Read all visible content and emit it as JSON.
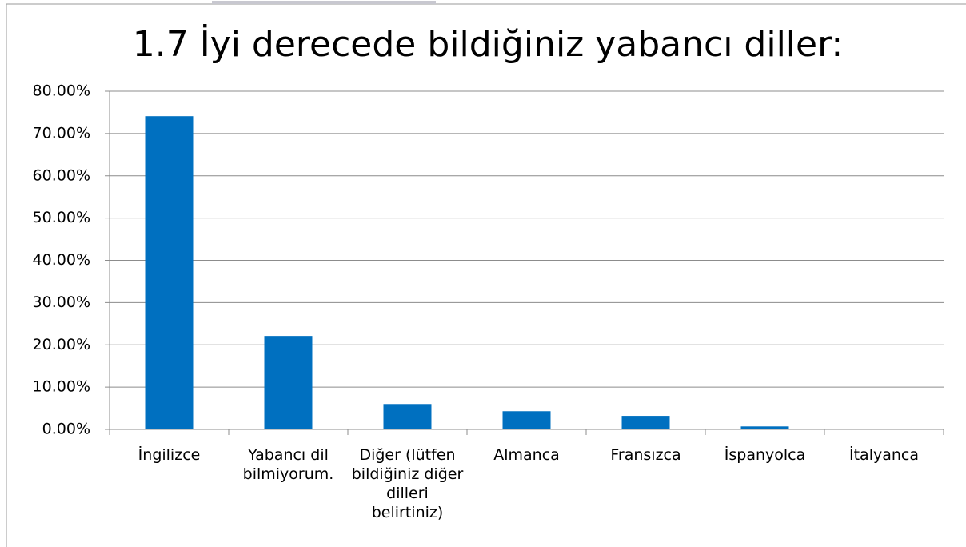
{
  "chart_data": {
    "type": "bar",
    "title": "1.7 İyi derecede bildiğiniz yabancı diller:",
    "categories": [
      "İngilizce",
      "Yabancı dil bilmiyorum.",
      "Diğer (lütfen bildiğiniz diğer dilleri belirtiniz)",
      "Almanca",
      "Fransızca",
      "İspanyolca",
      "İtalyanca"
    ],
    "values": [
      74.1,
      22.1,
      6.0,
      4.3,
      3.2,
      0.7,
      0
    ],
    "color": "#0070c0",
    "ylim": [
      0,
      80
    ],
    "yticks": [
      {
        "value": 0,
        "label": "0.00%"
      },
      {
        "value": 10,
        "label": "10.00%"
      },
      {
        "value": 20,
        "label": "20.00%"
      },
      {
        "value": 30,
        "label": "30.00%"
      },
      {
        "value": 40,
        "label": "40.00%"
      },
      {
        "value": 50,
        "label": "50.00%"
      },
      {
        "value": 60,
        "label": "60.00%"
      },
      {
        "value": 70,
        "label": "70.00%"
      },
      {
        "value": 80,
        "label": "80.00%"
      }
    ],
    "grid": true
  }
}
